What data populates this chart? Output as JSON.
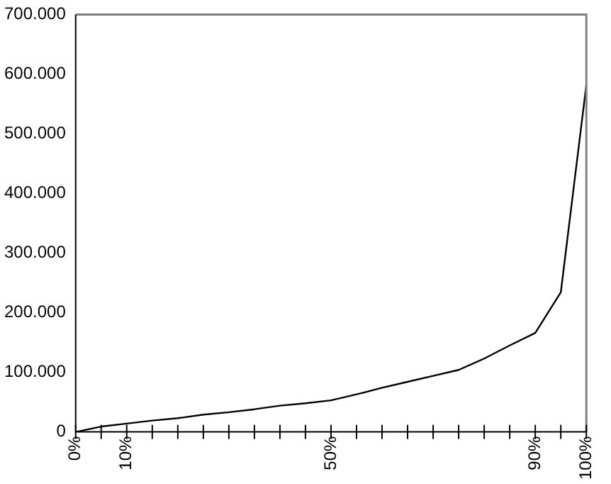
{
  "chart_data": {
    "type": "line",
    "x": [
      0,
      5,
      10,
      15,
      20,
      25,
      30,
      35,
      40,
      45,
      50,
      55,
      60,
      65,
      70,
      75,
      80,
      85,
      90,
      95,
      100
    ],
    "series": [
      {
        "color": "#000000",
        "values": [
          0,
          9000,
          14000,
          19000,
          23000,
          29000,
          33000,
          38000,
          44000,
          48000,
          53000,
          63000,
          74000,
          84000,
          94000,
          104000,
          123000,
          145000,
          166000,
          234000,
          582000
        ]
      }
    ],
    "xlim": [
      0,
      100
    ],
    "xticks": [
      {
        "value": 0,
        "label": "0%"
      },
      {
        "value": 5,
        "label": null
      },
      {
        "value": 10,
        "label": "10%"
      },
      {
        "value": 15,
        "label": null
      },
      {
        "value": 20,
        "label": null
      },
      {
        "value": 25,
        "label": null
      },
      {
        "value": 30,
        "label": null
      },
      {
        "value": 35,
        "label": null
      },
      {
        "value": 40,
        "label": null
      },
      {
        "value": 45,
        "label": null
      },
      {
        "value": 50,
        "label": "50%"
      },
      {
        "value": 55,
        "label": null
      },
      {
        "value": 60,
        "label": null
      },
      {
        "value": 65,
        "label": null
      },
      {
        "value": 70,
        "label": null
      },
      {
        "value": 75,
        "label": null
      },
      {
        "value": 80,
        "label": null
      },
      {
        "value": 85,
        "label": null
      },
      {
        "value": 90,
        "label": "90%"
      },
      {
        "value": 95,
        "label": null
      },
      {
        "value": 100,
        "label": "100%"
      }
    ],
    "ylim": [
      0,
      700000
    ],
    "yticks": [
      0,
      {
        "value": 100000,
        "label": "100.000"
      },
      {
        "value": 200000,
        "label": "200.000"
      },
      {
        "value": 300000,
        "label": "300.000"
      },
      {
        "value": 400000,
        "label": "400.000"
      },
      {
        "value": 500000,
        "label": "500.000"
      },
      {
        "value": 600000,
        "label": "600.000"
      },
      {
        "value": 700000,
        "label": "700.000"
      }
    ],
    "grid": false,
    "legend": false,
    "marker": "none",
    "line_style": "solid"
  }
}
